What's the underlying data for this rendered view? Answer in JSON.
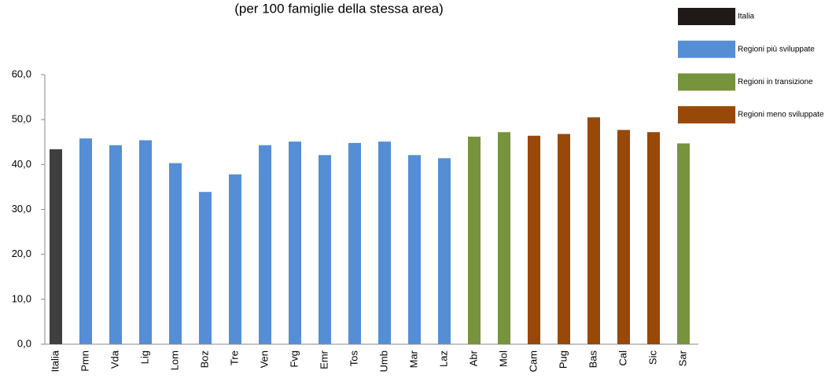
{
  "chart_data": {
    "type": "bar",
    "subtitle": "(per 100 famiglie della stessa area)",
    "categories": [
      "Italia",
      "Pmn",
      "Vda",
      "Lig",
      "Lom",
      "Boz",
      "Tre",
      "Ven",
      "Fvg",
      "Emr",
      "Tos",
      "Umb",
      "Mar",
      "Laz",
      "Abr",
      "Mol",
      "Cam",
      "Pug",
      "Bas",
      "Cal",
      "Sic",
      "Sar"
    ],
    "series": [
      {
        "name": "Italia",
        "color": "#3f3f3f",
        "values": [
          43.4,
          null,
          null,
          null,
          null,
          null,
          null,
          null,
          null,
          null,
          null,
          null,
          null,
          null,
          null,
          null,
          null,
          null,
          null,
          null,
          null,
          null
        ]
      },
      {
        "name": "Regioni più sviluppate",
        "color": "#558ed5",
        "values": [
          null,
          45.8,
          44.3,
          45.4,
          40.3,
          33.9,
          37.8,
          44.3,
          45.1,
          42.1,
          44.8,
          45.1,
          42.1,
          41.4,
          null,
          null,
          null,
          null,
          null,
          null,
          null,
          null
        ]
      },
      {
        "name": "Regioni in transizione",
        "color": "#77933c",
        "values": [
          null,
          null,
          null,
          null,
          null,
          null,
          null,
          null,
          null,
          null,
          null,
          null,
          null,
          null,
          46.2,
          47.2,
          null,
          null,
          null,
          null,
          null,
          44.7
        ]
      },
      {
        "name": "Regioni meno sviluppate",
        "color": "#984807",
        "values": [
          null,
          null,
          null,
          null,
          null,
          null,
          null,
          null,
          null,
          null,
          null,
          null,
          null,
          null,
          null,
          null,
          46.4,
          46.8,
          50.5,
          47.7,
          47.2,
          null
        ]
      }
    ],
    "legend_colors": [
      "#1f1a17",
      "#558ed5",
      "#77933c",
      "#984807"
    ],
    "ylim": [
      0,
      60
    ],
    "yticks": [
      {
        "value": 0,
        "label": "0,0"
      },
      {
        "value": 10,
        "label": "10,0"
      },
      {
        "value": 20,
        "label": "20,0"
      },
      {
        "value": 30,
        "label": "30,0"
      },
      {
        "value": 40,
        "label": "40,0"
      },
      {
        "value": 50,
        "label": "50,0"
      },
      {
        "value": 60,
        "label": "60,0"
      }
    ],
    "grid": false
  }
}
